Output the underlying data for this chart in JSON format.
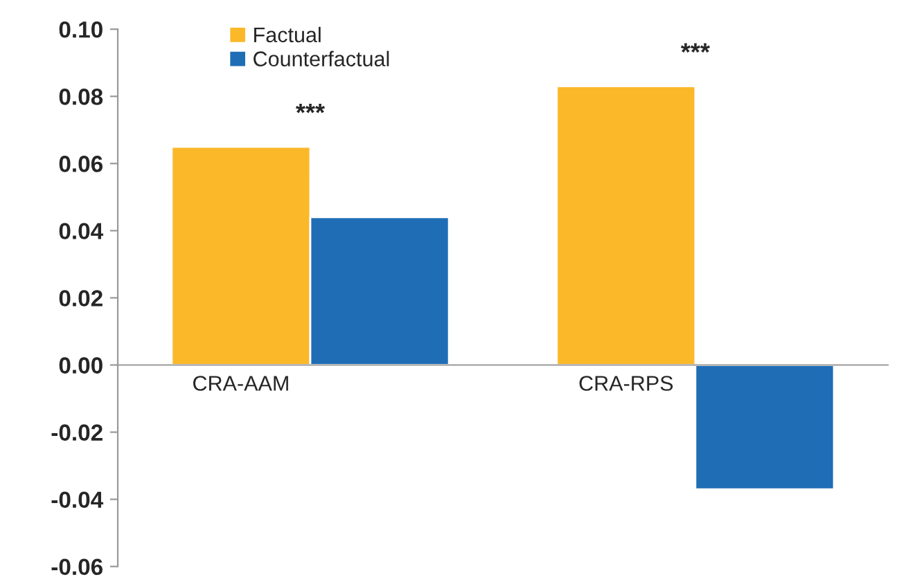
{
  "chart_data": {
    "type": "bar",
    "categories": [
      "CRA-AAM",
      "CRA-RPS"
    ],
    "series": [
      {
        "name": "Factual",
        "color": "#fbb829",
        "values": [
          0.065,
          0.083
        ]
      },
      {
        "name": "Counterfactual",
        "color": "#1f6db5",
        "values": [
          0.044,
          -0.037
        ]
      }
    ],
    "ylim": [
      -0.06,
      0.1
    ],
    "yticks": [
      {
        "value": -0.06,
        "label": "-0.06"
      },
      {
        "value": -0.04,
        "label": "-0.04"
      },
      {
        "value": -0.02,
        "label": "-0.02"
      },
      {
        "value": 0,
        "label": "0.00"
      },
      {
        "value": 0.02,
        "label": "0.02"
      },
      {
        "value": 0.04,
        "label": "0.04"
      },
      {
        "value": 0.06,
        "label": "0.06"
      },
      {
        "value": 0.08,
        "label": "0.08"
      },
      {
        "value": 0.1,
        "label": "0.10"
      }
    ],
    "annotations": [
      "***",
      "***"
    ],
    "legend": "top left",
    "grid": false
  }
}
